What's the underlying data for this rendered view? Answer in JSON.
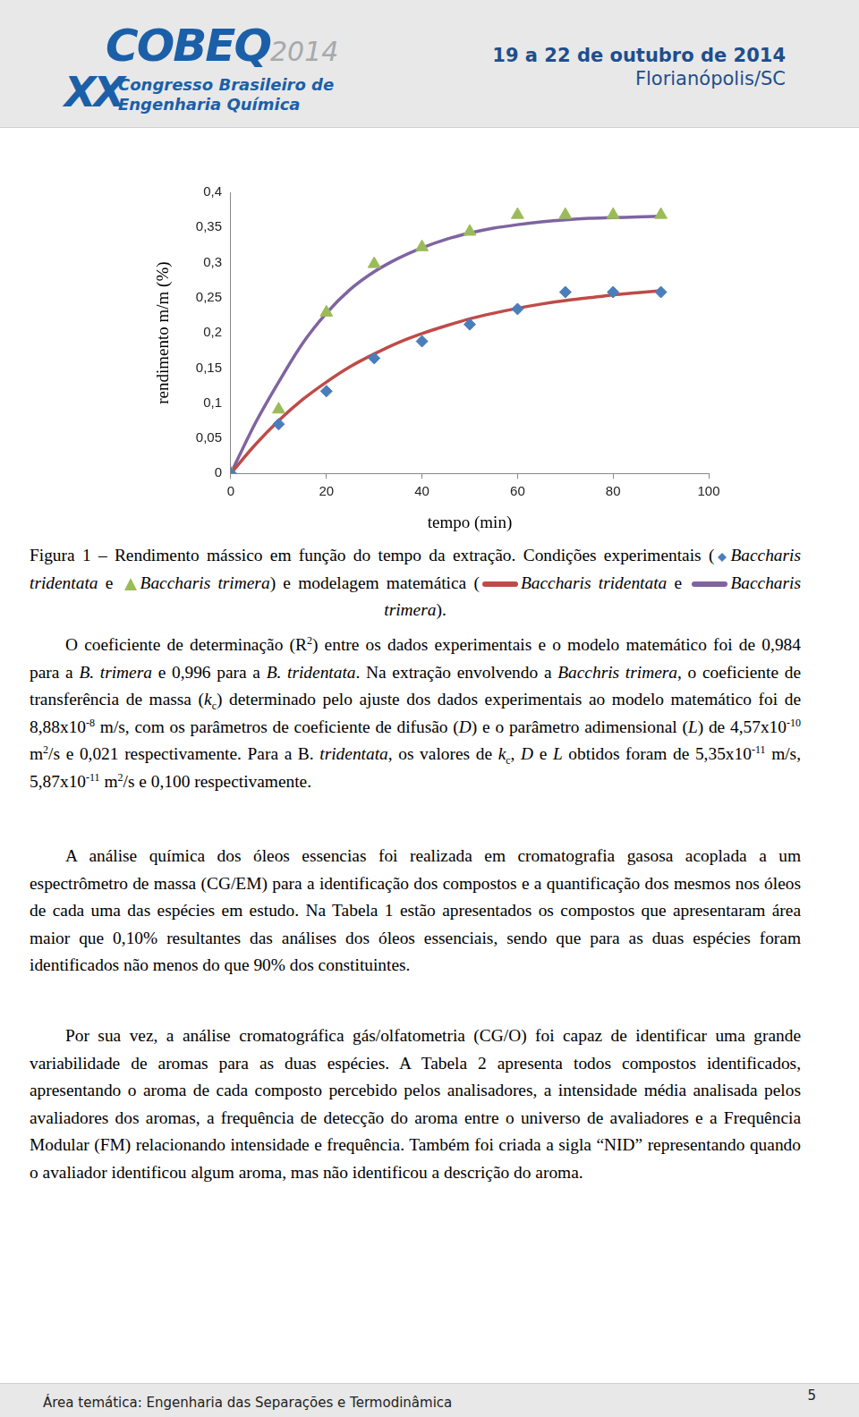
{
  "header": {
    "logo": "COBEQ",
    "logo_year": "2014",
    "logo_edition": "XX",
    "logo_line1": "Congresso Brasileiro de",
    "logo_line2": "Engenharia Química",
    "date": "19 a 22 de outubro de 2014",
    "place": "Florianópolis/SC"
  },
  "chart_data": {
    "type": "scatter",
    "x_label": "tempo (min)",
    "y_label": "rendimento m/m (%)",
    "xlim": [
      0,
      100
    ],
    "xticks": [
      0,
      20,
      40,
      60,
      80,
      100
    ],
    "ylim": [
      0,
      0.4
    ],
    "yticks": [
      0,
      {
        "value": 0.05,
        "label": "0,05"
      },
      {
        "value": 0.1,
        "label": "0,1"
      },
      {
        "value": 0.15,
        "label": "0,15"
      },
      {
        "value": 0.2,
        "label": "0,2"
      },
      {
        "value": 0.25,
        "label": "0,25"
      },
      {
        "value": 0.3,
        "label": "0,3"
      },
      {
        "value": 0.35,
        "label": "0,35"
      },
      {
        "value": 0.4,
        "label": "0,4"
      }
    ],
    "grid": false,
    "series": [
      {
        "type": "scatter",
        "marker": "diamond",
        "color": "#4a7ebb",
        "x": [
          0,
          10,
          20,
          30,
          40,
          50,
          60,
          70,
          80,
          90
        ],
        "values": [
          0,
          0.07,
          0.117,
          0.164,
          0.188,
          0.212,
          0.234,
          0.258,
          0.258,
          0.258
        ]
      },
      {
        "type": "scatter",
        "marker": "triangle",
        "color": "#9bbb59",
        "x": [
          0,
          10,
          20,
          30,
          40,
          50,
          60,
          70,
          80,
          90
        ],
        "values": [
          0,
          0.091,
          0.229,
          0.298,
          0.322,
          0.344,
          0.368,
          0.368,
          0.368,
          0.368
        ]
      },
      {
        "type": "line",
        "marker": "none",
        "color": "#be4b48",
        "x": [
          0,
          5,
          10,
          15,
          20,
          25,
          30,
          35,
          40,
          45,
          50,
          55,
          60,
          65,
          70,
          75,
          80,
          85,
          90
        ],
        "values": [
          0,
          0.04,
          0.075,
          0.105,
          0.13,
          0.152,
          0.17,
          0.186,
          0.199,
          0.21,
          0.22,
          0.228,
          0.235,
          0.241,
          0.246,
          0.25,
          0.254,
          0.257,
          0.26
        ]
      },
      {
        "type": "line",
        "marker": "none",
        "color": "#7f64a0",
        "x": [
          0,
          5,
          10,
          15,
          20,
          25,
          30,
          35,
          40,
          45,
          50,
          55,
          60,
          65,
          70,
          75,
          80,
          85,
          90
        ],
        "values": [
          0,
          0.07,
          0.13,
          0.185,
          0.228,
          0.262,
          0.287,
          0.306,
          0.321,
          0.333,
          0.342,
          0.349,
          0.354,
          0.358,
          0.361,
          0.363,
          0.364,
          0.365,
          0.366
        ]
      }
    ]
  },
  "caption": [
    "Figura 1 – Rendimento mássico em função do tempo da extração. Condições experimentais (",
    {
      "marker": "diamond",
      "color": "#4a7ebb"
    },
    {
      "text": "Baccharis tridentata",
      "style": "i"
    },
    " e ",
    {
      "marker": "triangle",
      "color": "#9bbb59"
    },
    {
      "text": "Baccharis trimera",
      "style": "i"
    },
    ") e modelagem matemática (",
    {
      "marker": "line",
      "color": "#be4b48"
    },
    {
      "text": "Baccharis tridentata",
      "style": "i"
    },
    " e ",
    {
      "marker": "line",
      "color": "#7f64a0"
    },
    {
      "text": "Baccharis trimera",
      "style": "i"
    },
    ")."
  ],
  "paragraphs": [
    [
      "O coeficiente de determinação (R",
      {
        "text": "2",
        "style": "sup"
      },
      ") entre os dados experimentais e o modelo matemático foi de 0,984 para a ",
      {
        "text": "B. trimera",
        "style": "i"
      },
      " e 0,996 para a ",
      {
        "text": "B. tridentata",
        "style": "i"
      },
      ". Na extração envolvendo a ",
      {
        "text": "Bacchris trimera",
        "style": "i"
      },
      ", o coeficiente de transferência de massa (",
      {
        "text": "k",
        "style": "i"
      },
      {
        "text": "c",
        "style": "sub"
      },
      ") determinado pelo ajuste dos dados experimentais ao modelo matemático foi de 8,88x10",
      {
        "text": "-8",
        "style": "sup"
      },
      " m/s, com os parâmetros de coeficiente de difusão (",
      {
        "text": "D",
        "style": "i"
      },
      ") e o parâmetro adimensional (",
      {
        "text": "L",
        "style": "i"
      },
      ") de 4,57x10",
      {
        "text": "-10",
        "style": "sup"
      },
      " m",
      {
        "text": "2",
        "style": "sup"
      },
      "/s e 0,021 respectivamente. Para a B. ",
      {
        "text": "tridentata",
        "style": "i"
      },
      ", os valores de ",
      {
        "text": "k",
        "style": "i"
      },
      {
        "text": "c",
        "style": "sub"
      },
      ", ",
      {
        "text": "D",
        "style": "i"
      },
      " e ",
      {
        "text": "L",
        "style": "i"
      },
      " obtidos foram de 5,35x10",
      {
        "text": "-11",
        "style": "sup"
      },
      " m/s, 5,87x10",
      {
        "text": "-11",
        "style": "sup"
      },
      " m",
      {
        "text": "2",
        "style": "sup"
      },
      "/s e 0,100 respectivamente."
    ],
    [
      "A análise química dos óleos essencias foi realizada em cromatografia gasosa acoplada a um espectrômetro de massa (CG/EM) para a identificação dos compostos e a quantificação dos mesmos nos óleos de cada uma das espécies em estudo.  Na Tabela 1 estão apresentados os compostos que apresentaram área maior que 0,10% resultantes das análises dos óleos essenciais, sendo que para as duas espécies foram identificados não menos do que 90% dos constituintes."
    ],
    [
      "Por sua vez, a análise cromatográfica gás/olfatometria (CG/O) foi capaz de identificar uma grande variabilidade de aromas para as duas espécies. A Tabela 2 apresenta todos compostos identificados, apresentando o aroma de cada composto percebido pelos analisadores, a intensidade média analisada pelos avaliadores dos aromas, a frequência de detecção do aroma entre o universo de avaliadores e a Frequência Modular (FM) relacionando intensidade e frequência. Também foi criada a sigla “NID” representando quando o avaliador identificou algum aroma, mas não identificou a descrição do aroma."
    ]
  ],
  "footer": {
    "area": "Área temática: Engenharia das Separações e Termodinâmica",
    "page": 5
  }
}
